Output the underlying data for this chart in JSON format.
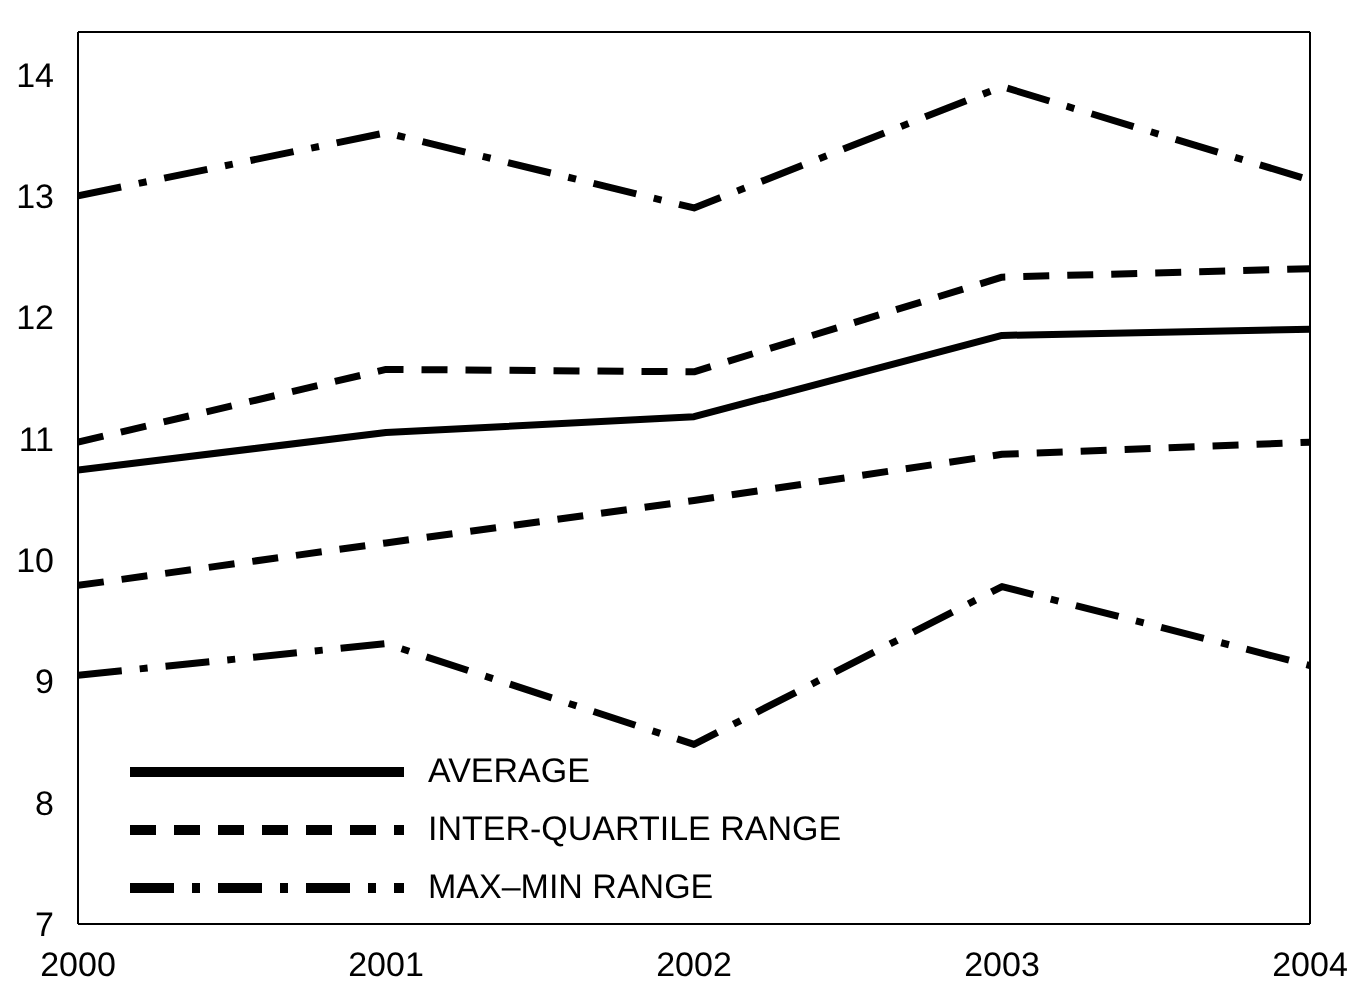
{
  "chart_data": {
    "type": "line",
    "x": [
      2000,
      2001,
      2002,
      2003,
      2004
    ],
    "xlim": [
      2000,
      2004
    ],
    "xticks": [
      2000,
      2001,
      2002,
      2003,
      2004
    ],
    "ylim": [
      7,
      14.35
    ],
    "yticks": [
      7,
      8,
      9,
      10,
      11,
      12,
      13,
      14
    ],
    "grid": false,
    "legend": "bottom left",
    "marker": "none",
    "series": [
      {
        "name": "AVERAGE",
        "color": "#000000",
        "line_style": "solid",
        "values": [
          10.74,
          11.05,
          11.18,
          11.85,
          11.9
        ]
      },
      {
        "name": "INTER-QUARTILE RANGE",
        "color": "#000000",
        "line_style": "dashed",
        "values": [
          10.97,
          11.57,
          11.55,
          12.33,
          12.4
        ]
      },
      {
        "color": "#000000",
        "line_style": "dashed",
        "values": [
          9.79,
          10.14,
          10.49,
          10.87,
          10.97
        ]
      },
      {
        "name": "MAX–MIN RANGE",
        "color": "#000000",
        "line_style": "dashdot",
        "values": [
          13.0,
          13.52,
          12.9,
          13.9,
          13.13
        ]
      },
      {
        "color": "#000000",
        "line_style": "dashdot",
        "values": [
          9.05,
          9.31,
          8.48,
          9.78,
          9.13
        ]
      }
    ]
  }
}
